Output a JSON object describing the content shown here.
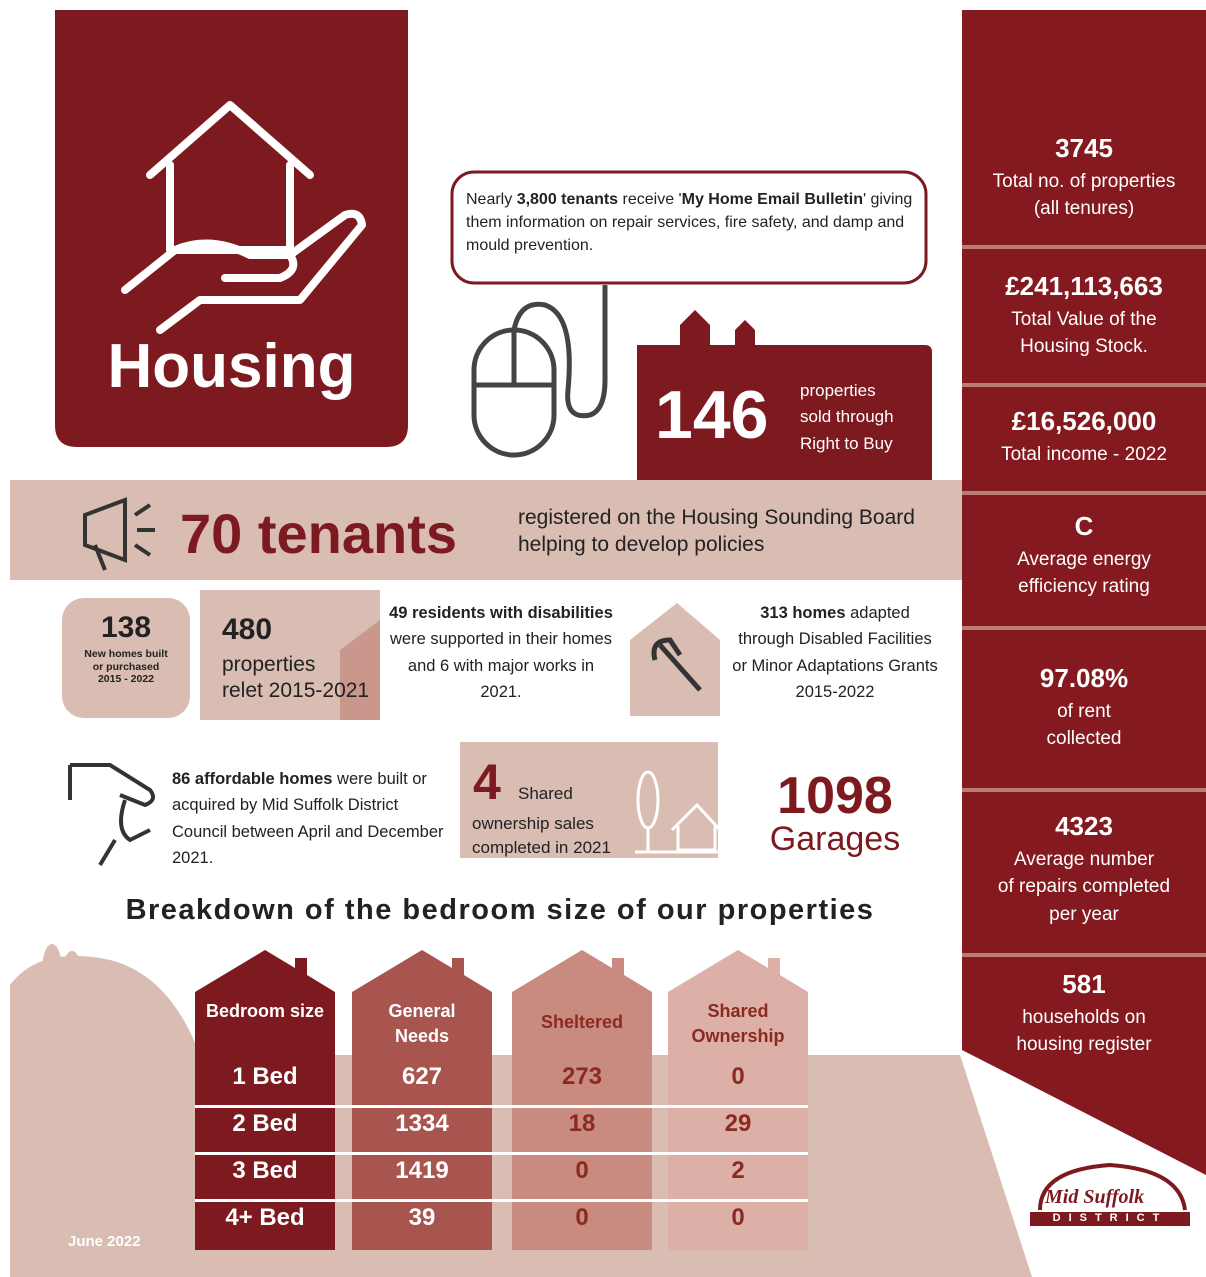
{
  "title": "Housing",
  "bulletin": {
    "segments": [
      {
        "text": "Nearly ",
        "bold": false
      },
      {
        "text": "3,800 tenants",
        "bold": true
      },
      {
        "text": " receive '",
        "bold": false
      },
      {
        "text": "My Home Email Bulletin",
        "bold": true
      },
      {
        "text": "' giving them information on repair services, fire safety, and damp and mould prevention.",
        "bold": false
      }
    ]
  },
  "right_to_buy": {
    "value": "146",
    "lines": [
      "properties",
      "sold through",
      "Right to Buy"
    ]
  },
  "sounding_board": {
    "value": "70 tenants",
    "lines": [
      "registered on the Housing Sounding Board",
      "helping to develop policies"
    ]
  },
  "new_homes": {
    "value": "138",
    "lines": [
      "New homes built",
      "or purchased",
      "2015 - 2022"
    ]
  },
  "relet": {
    "value": "480",
    "lines": [
      "properties",
      "relet 2015-2021"
    ]
  },
  "disabilities": {
    "segments": [
      {
        "text": "49 residents with disabilities",
        "bold": true
      },
      {
        "text": " were supported in their homes and 6 with major works in 2021.",
        "bold": false
      }
    ]
  },
  "adapted": {
    "segments": [
      {
        "text": "313 homes",
        "bold": true
      },
      {
        "text": " adapted through Disabled Facilities or Minor Adaptations Grants 2015-2022",
        "bold": false
      }
    ]
  },
  "affordable": {
    "segments": [
      {
        "text": "86 affordable homes",
        "bold": true
      },
      {
        "text": " were built or acquired by Mid Suffolk District Council between April and December 2021.",
        "bold": false
      }
    ]
  },
  "shared_sales": {
    "value": "4",
    "first": "Shared",
    "rest": "ownership sales completed in 2021"
  },
  "garages": {
    "value": "1098",
    "label": "Garages"
  },
  "breakdown": {
    "heading": "Breakdown of the bedroom size of our properties",
    "headers": [
      "Bedroom size",
      "General Needs",
      "Sheltered",
      "Shared Ownership"
    ],
    "rows": [
      [
        "1 Bed",
        627,
        273,
        0
      ],
      [
        "2 Bed",
        1334,
        18,
        29
      ],
      [
        "3 Bed",
        1419,
        0,
        2
      ],
      [
        "4+ Bed",
        39,
        0,
        0
      ]
    ]
  },
  "stats": [
    {
      "value": "3745",
      "lines": [
        "Total no. of properties",
        "(all tenures)"
      ]
    },
    {
      "value": "£241,113,663",
      "lines": [
        "Total Value of the",
        "Housing Stock."
      ]
    },
    {
      "value": "£16,526,000",
      "lines": [
        "Total income - 2022"
      ]
    },
    {
      "value": "C",
      "lines": [
        "Average energy",
        "efficiency rating"
      ]
    },
    {
      "value": "97.08%",
      "lines": [
        "of rent",
        "collected"
      ]
    },
    {
      "value": "4323",
      "lines": [
        "Average number",
        "of repairs completed",
        "per year"
      ]
    },
    {
      "value": "581",
      "lines": [
        "households on",
        "housing register"
      ]
    }
  ],
  "date": "June 2022",
  "logo": {
    "name": "Mid Suffolk",
    "sub": "DISTRICT"
  }
}
